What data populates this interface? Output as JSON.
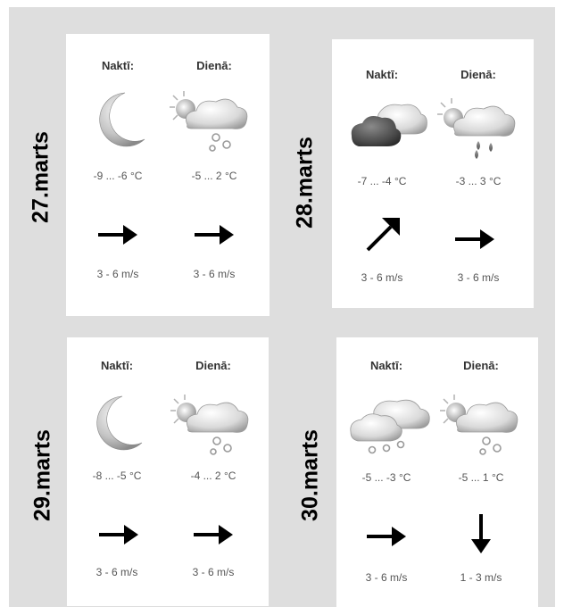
{
  "days": [
    {
      "date": "27.marts",
      "night": {
        "header": "Naktī:",
        "icon": "moon-icon",
        "temp": "-9 ... -6 °C",
        "wind_dir": "east-arrow-icon",
        "wind": "3 - 6 m/s"
      },
      "day": {
        "header": "Dienā:",
        "icon": "sun-cloud-snow-icon",
        "temp": "-5 ... 2 °C",
        "wind_dir": "east-arrow-icon",
        "wind": "3 - 6 m/s"
      }
    },
    {
      "date": "28.marts",
      "night": {
        "header": "Naktī:",
        "icon": "dark-clouds-icon",
        "temp": "-7 ... -4 °C",
        "wind_dir": "northeast-arrow-icon",
        "wind": "3 - 6 m/s"
      },
      "day": {
        "header": "Dienā:",
        "icon": "sun-cloud-rain-icon",
        "temp": "-3 ... 3 °C",
        "wind_dir": "east-arrow-icon",
        "wind": "3 - 6 m/s"
      }
    },
    {
      "date": "29.marts",
      "night": {
        "header": "Naktī:",
        "icon": "moon-icon",
        "temp": "-8 ... -5 °C",
        "wind_dir": "east-arrow-icon",
        "wind": "3 - 6 m/s"
      },
      "day": {
        "header": "Dienā:",
        "icon": "sun-cloud-snow-icon",
        "temp": "-4 ... 2 °C",
        "wind_dir": "east-arrow-icon",
        "wind": "3 - 6 m/s"
      }
    },
    {
      "date": "30.marts",
      "night": {
        "header": "Naktī:",
        "icon": "cloud-snow-icon",
        "temp": "-5 ... -3 °C",
        "wind_dir": "east-arrow-icon",
        "wind": "3 - 6 m/s"
      },
      "day": {
        "header": "Dienā:",
        "icon": "sun-cloud-snow-icon",
        "temp": "-5 ... 1 °C",
        "wind_dir": "south-arrow-icon",
        "wind": "1 - 3 m/s"
      }
    }
  ]
}
